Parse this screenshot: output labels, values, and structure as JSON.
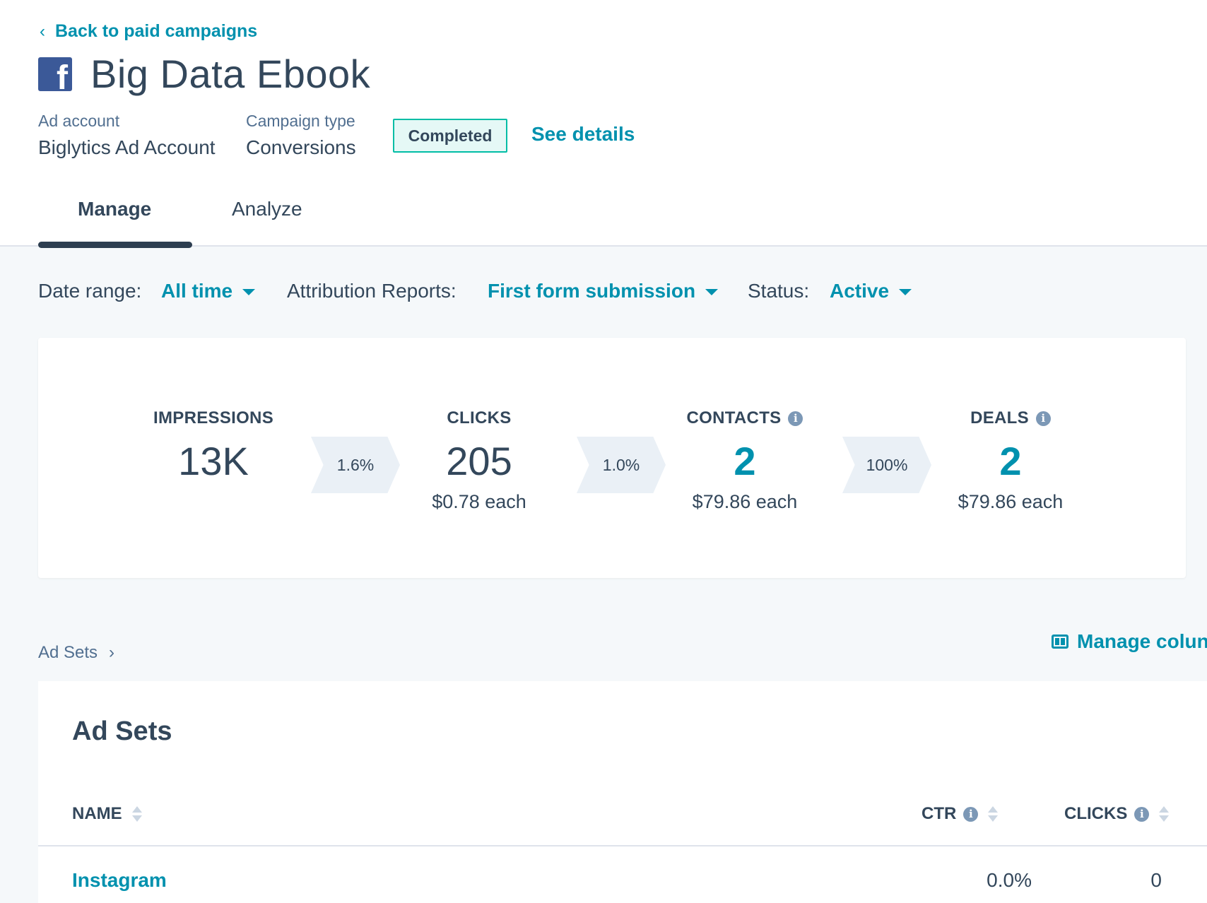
{
  "header": {
    "back_link": "Back to paid campaigns",
    "title": "Big Data Ebook",
    "platform_icon": "facebook-icon",
    "meta": [
      {
        "label": "Ad account",
        "value": "Biglytics Ad Account"
      },
      {
        "label": "Campaign type",
        "value": "Conversions"
      }
    ],
    "status_badge": "Completed",
    "see_details": "See details"
  },
  "tabs": [
    {
      "label": "Manage",
      "active": true
    },
    {
      "label": "Analyze",
      "active": false
    }
  ],
  "filters": {
    "date_range": {
      "label": "Date range:",
      "value": "All time"
    },
    "attribution": {
      "label": "Attribution Reports:",
      "value": "First form submission"
    },
    "status": {
      "label": "Status:",
      "value": "Active"
    }
  },
  "funnel": {
    "impressions": {
      "name": "IMPRESSIONS",
      "value": "13K"
    },
    "rate1": "1.6%",
    "clicks": {
      "name": "CLICKS",
      "value": "205",
      "sub": "$0.78 each"
    },
    "rate2": "1.0%",
    "contacts": {
      "name": "CONTACTS",
      "value": "2",
      "sub": "$79.86 each"
    },
    "rate3": "100%",
    "deals": {
      "name": "DEALS",
      "value": "2",
      "sub": "$79.86 each"
    }
  },
  "ad_sets_section": {
    "breadcrumb": "Ad Sets",
    "manage_columns": "Manage colun",
    "table_title": "Ad Sets",
    "columns": {
      "name": "NAME",
      "ctr": "CTR",
      "clicks": "CLICKS"
    },
    "rows": [
      {
        "name": "Instagram",
        "ctr": "0.0%",
        "clicks": "0"
      }
    ]
  },
  "colors": {
    "accent": "#0091ae",
    "text": "#33475b",
    "badge_border": "#00bda5",
    "facebook": "#3b5998"
  }
}
